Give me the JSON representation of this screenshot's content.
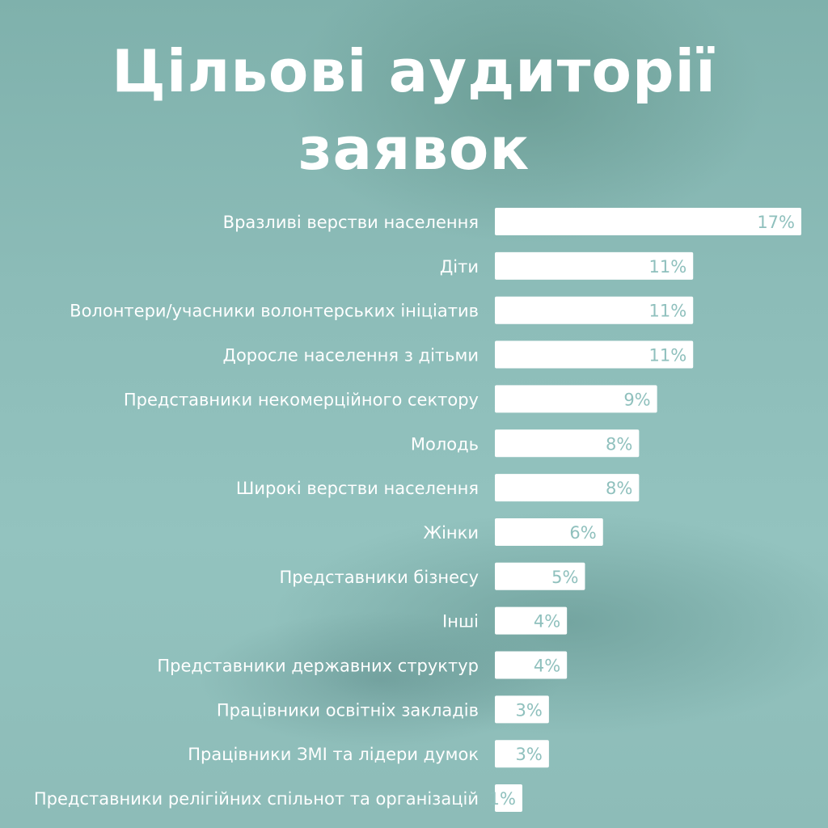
{
  "chart_data": {
    "type": "bar",
    "orientation": "horizontal",
    "title": "Цільові аудиторії заявок",
    "title_lines": [
      "Цільові аудиторії",
      "заявок"
    ],
    "categories": [
      "Вразливі верстви населення",
      "Діти",
      "Волонтери/учасники волонтерських ініціатив",
      "Доросле населення з дітьми",
      "Представники некомерційного сектору",
      "Молодь",
      "Широкі верстви населення",
      "Жінки",
      "Представники бізнесу",
      "Інші",
      "Представники державних структур",
      "Працівники освітніх закладів",
      "Працівники ЗМІ та лідери думок",
      "Представники релігійних спільнот та організацій"
    ],
    "values": [
      17,
      11,
      11,
      11,
      9,
      8,
      8,
      6,
      5,
      4,
      4,
      3,
      3,
      1
    ],
    "value_labels": [
      "17%",
      "11%",
      "11%",
      "11%",
      "9%",
      "8%",
      "8%",
      "6%",
      "5%",
      "4%",
      "4%",
      "3%",
      "3%",
      "1%"
    ],
    "unit": "%",
    "xlim": [
      0,
      17
    ],
    "grid": false,
    "legend": "none",
    "bar_color": "#ffffff",
    "value_label_color": "#8fc0bd",
    "text_color": "#ffffff"
  }
}
